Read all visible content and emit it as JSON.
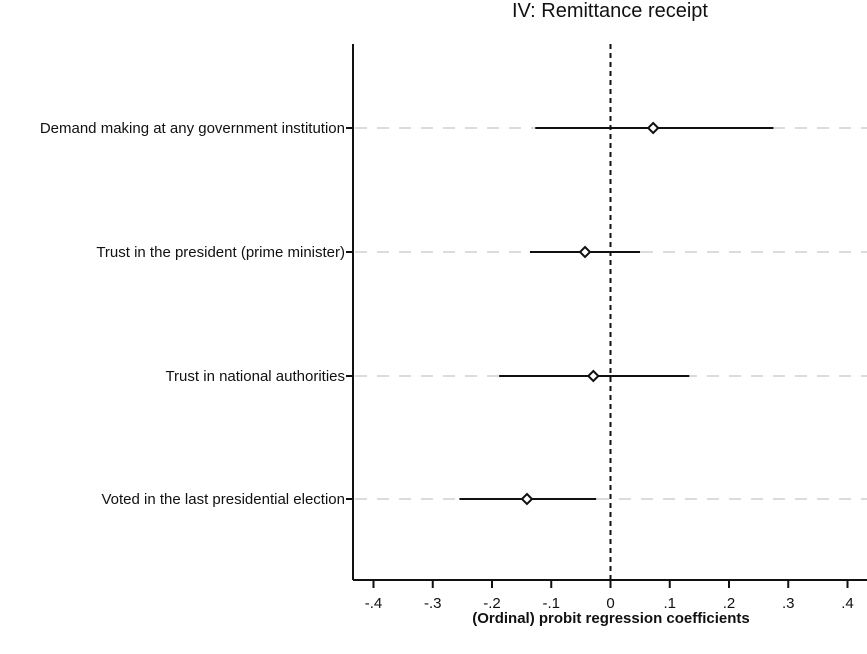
{
  "chart_data": {
    "type": "scatter",
    "title": "IV: Remittance receipt",
    "xlabel": "(Ordinal) probit regression coefficients",
    "ylabel": "",
    "xlim": [
      -0.44,
      0.43
    ],
    "x_ticks": [
      {
        "value": -0.4,
        "label": "-.4"
      },
      {
        "value": -0.3,
        "label": "-.3"
      },
      {
        "value": -0.2,
        "label": "-.2"
      },
      {
        "value": -0.1,
        "label": "-.1"
      },
      {
        "value": 0.0,
        "label": "0"
      },
      {
        "value": 0.1,
        "label": ".1"
      },
      {
        "value": 0.2,
        "label": ".2"
      },
      {
        "value": 0.3,
        "label": ".3"
      },
      {
        "value": 0.4,
        "label": ".4"
      }
    ],
    "reference_line": {
      "x": 0,
      "style": "dashed"
    },
    "grid": "horizontal dashed",
    "series": [
      {
        "points": [
          {
            "label": "Demand making at any government institution",
            "estimate": 0.072,
            "ci_low": -0.127,
            "ci_high": 0.275
          },
          {
            "label": "Trust in the president (prime minister)",
            "estimate": -0.043,
            "ci_low": -0.136,
            "ci_high": 0.05
          },
          {
            "label": "Trust in national authorities",
            "estimate": -0.029,
            "ci_low": -0.188,
            "ci_high": 0.133
          },
          {
            "label": "Voted in the last presidential election",
            "estimate": -0.141,
            "ci_low": -0.255,
            "ci_high": -0.024
          }
        ]
      }
    ]
  }
}
